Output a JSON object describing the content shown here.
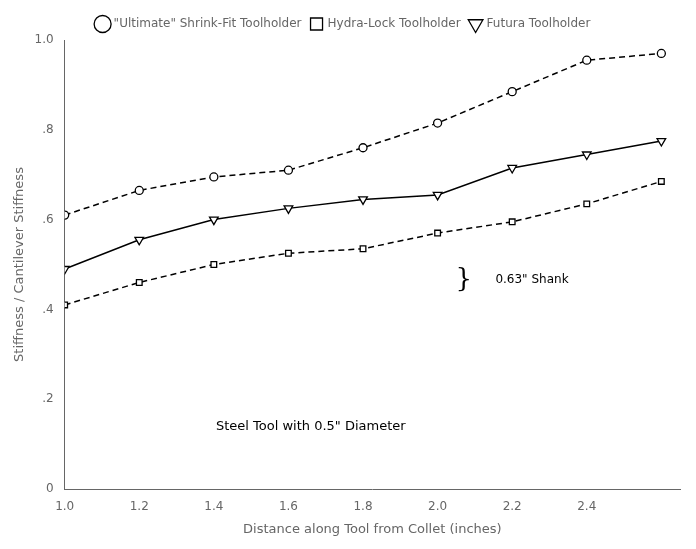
{
  "chart_data": {
    "type": "line",
    "x": [
      1.0,
      1.2,
      1.4,
      1.6,
      1.8,
      2.0,
      2.2,
      2.4,
      2.6
    ],
    "series": [
      {
        "name": "\"Ultimate\" Shrink-Fit Toolholder",
        "color": "#000000",
        "line_style": "dashed",
        "marker": "circle",
        "values": [
          0.61,
          0.665,
          0.695,
          0.71,
          0.76,
          0.815,
          0.885,
          0.955,
          0.97
        ]
      },
      {
        "name": "Hydra-Lock Toolholder",
        "color": "#000000",
        "line_style": "dashed",
        "marker": "square",
        "values": [
          0.41,
          0.46,
          0.5,
          0.525,
          0.535,
          0.57,
          0.595,
          0.635,
          0.685
        ]
      },
      {
        "name": "Futura Toolholder",
        "color": "#000000",
        "line_style": "solid",
        "marker": "triangle_down",
        "values": [
          0.49,
          0.555,
          0.6,
          0.625,
          0.645,
          0.655,
          0.715,
          0.745,
          0.775
        ]
      }
    ],
    "xlabel": "Distance along Tool from Collet (inches)",
    "ylabel": "Stiffness / Cantilever Stiffness",
    "xlim": [
      1.0,
      2.65
    ],
    "ylim": [
      0.0,
      1.0
    ],
    "xticks": [
      {
        "value": 1.0,
        "label": "1.0"
      },
      1.2,
      1.4,
      1.6,
      1.8,
      {
        "value": 2.0,
        "label": "2.0"
      },
      2.2,
      2.4
    ],
    "yticks": [
      0,
      {
        "value": 0.2,
        "label": ".2"
      },
      {
        "value": 0.4,
        "label": ".4"
      },
      {
        "value": 0.6,
        "label": ".6"
      },
      {
        "value": 0.8,
        "label": ".8"
      },
      {
        "value": 1.0,
        "label": "1.0"
      }
    ],
    "annotations": [
      "}",
      "0.63\" Shank",
      "Steel Tool with 0.5\" Diameter"
    ],
    "grid": false
  }
}
